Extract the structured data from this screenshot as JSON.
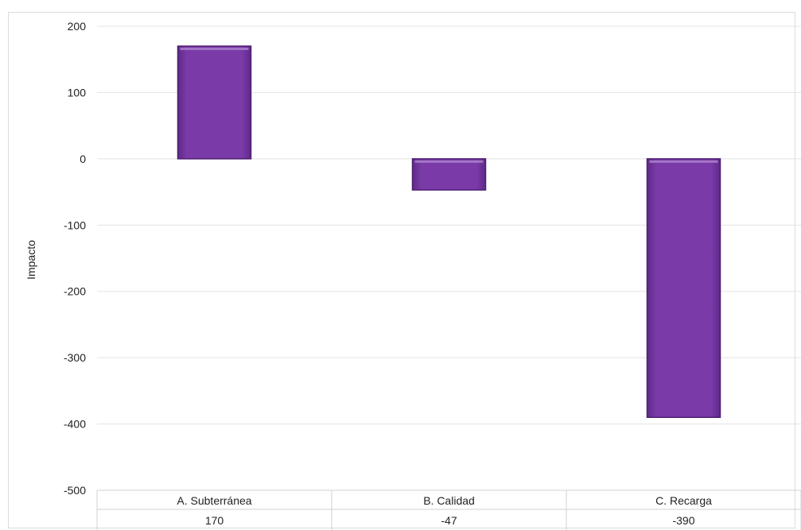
{
  "chart_data": {
    "type": "bar",
    "categories": [
      "A. Subterránea",
      "B. Calidad",
      "C. Recarga"
    ],
    "values": [
      170,
      -47,
      -390
    ],
    "value_labels": [
      "170",
      "-47",
      "-390"
    ],
    "title": "",
    "xlabel": "",
    "ylabel": "Impacto",
    "ylim": [
      -500,
      200
    ],
    "yticks": [
      200,
      100,
      0,
      -100,
      -200,
      -300,
      -400,
      -500
    ],
    "grid": true,
    "data_table_below_axis": true,
    "bar_color": "#7a3aa8",
    "bar_highlight": "#a87cc9",
    "bar_edge": "#4e1f73"
  }
}
